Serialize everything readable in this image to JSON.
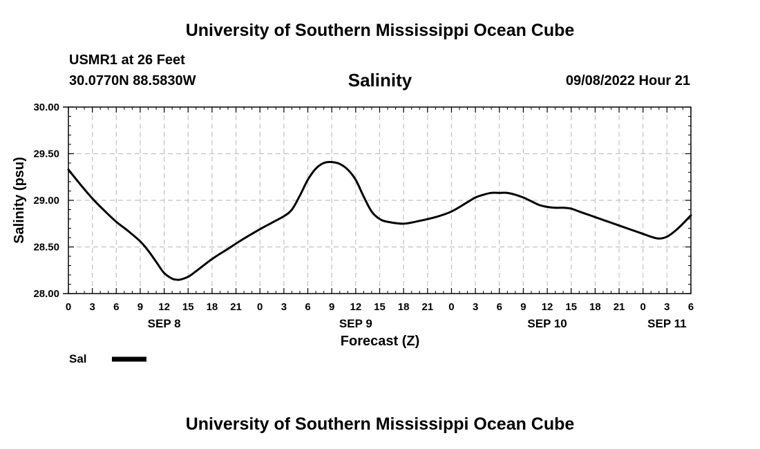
{
  "header": {
    "title_top": "University of Southern Mississippi Ocean Cube",
    "station": "USMR1 at 26 Feet",
    "coordinates": "30.0770N  88.5830W",
    "datetime": "09/08/2022 Hour 21"
  },
  "footer": {
    "title_bottom": "University of Southern Mississippi Ocean Cube"
  },
  "chart_data": {
    "type": "line",
    "title": "Salinity",
    "xlabel": "Forecast (Z)",
    "ylabel": "Salinity (psu)",
    "ylim": [
      28.0,
      30.0
    ],
    "xlim": [
      0,
      78
    ],
    "x_unit": "hours from SEP 8 00Z",
    "yticks": [
      "28.00",
      "28.50",
      "29.00",
      "29.50",
      "30.00"
    ],
    "ytick_values": [
      28.0,
      28.5,
      29.0,
      29.5,
      30.0
    ],
    "xtick_labels": [
      "0",
      "3",
      "6",
      "9",
      "12",
      "15",
      "18",
      "21",
      "0",
      "3",
      "6",
      "9",
      "12",
      "15",
      "18",
      "21",
      "0",
      "3",
      "6",
      "9",
      "12",
      "15",
      "18",
      "21",
      "0",
      "3",
      "6"
    ],
    "day_labels": [
      {
        "label": "SEP 8",
        "hour": 12
      },
      {
        "label": "SEP 9",
        "hour": 36
      },
      {
        "label": "SEP 10",
        "hour": 60
      },
      {
        "label": "SEP 11",
        "hour": 75
      }
    ],
    "grid": true,
    "legend_position": "bottom-left",
    "series": [
      {
        "name": "Sal",
        "color": "#000000",
        "x": [
          0,
          1.5,
          3,
          4.5,
          6,
          7.5,
          9,
          10,
          11,
          12,
          13,
          13.5,
          14,
          15,
          16,
          18,
          20,
          22,
          24,
          25.5,
          27,
          28,
          29,
          30,
          31,
          32,
          33,
          34,
          35,
          36,
          37,
          38,
          39,
          40,
          42,
          44,
          46,
          48,
          50,
          51,
          52,
          53,
          54,
          55,
          56,
          57,
          58,
          59,
          60,
          61,
          62,
          63,
          64,
          65,
          66,
          67,
          68,
          69,
          70,
          71,
          72,
          73,
          74,
          75,
          76,
          77,
          78
        ],
        "values": [
          29.33,
          29.17,
          29.02,
          28.89,
          28.77,
          28.67,
          28.56,
          28.46,
          28.34,
          28.22,
          28.16,
          28.15,
          28.15,
          28.18,
          28.24,
          28.37,
          28.48,
          28.59,
          28.69,
          28.76,
          28.83,
          28.9,
          29.05,
          29.22,
          29.34,
          29.4,
          29.41,
          29.39,
          29.33,
          29.22,
          29.04,
          28.88,
          28.8,
          28.77,
          28.75,
          28.78,
          28.82,
          28.88,
          28.98,
          29.03,
          29.06,
          29.08,
          29.08,
          29.08,
          29.06,
          29.03,
          28.99,
          28.95,
          28.93,
          28.92,
          28.92,
          28.91,
          28.88,
          28.85,
          28.82,
          28.79,
          28.76,
          28.73,
          28.7,
          28.67,
          28.64,
          28.61,
          28.59,
          28.61,
          28.67,
          28.75,
          28.84
        ]
      }
    ]
  }
}
